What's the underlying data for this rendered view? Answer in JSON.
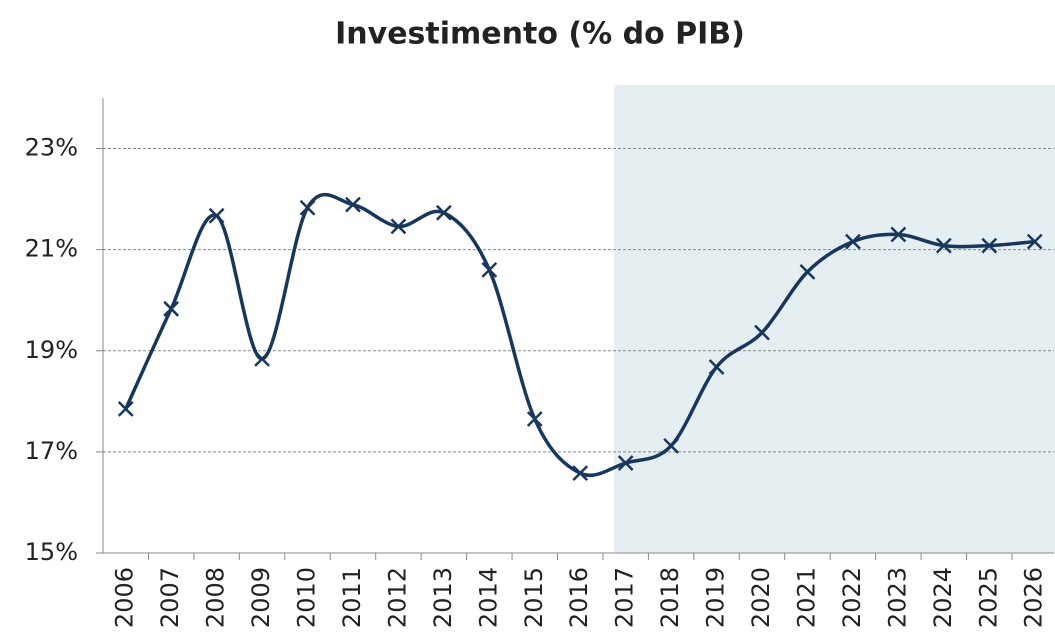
{
  "chart_data": {
    "type": "line",
    "title": "Investimento (% do PIB)",
    "categories": [
      "2006",
      "2007",
      "2008",
      "2009",
      "2010",
      "2011",
      "2012",
      "2013",
      "2014",
      "2015",
      "2016",
      "2017",
      "2018",
      "2019",
      "2020",
      "2021",
      "2022",
      "2023",
      "2024",
      "2025",
      "2026"
    ],
    "series": [
      {
        "color": "#17375e",
        "values": [
          17.85,
          19.83,
          21.67,
          18.84,
          21.83,
          21.89,
          21.46,
          21.73,
          20.6,
          17.65,
          16.58,
          16.78,
          17.12,
          18.68,
          19.36,
          20.56,
          21.16,
          21.3,
          21.08,
          21.08,
          21.16
        ]
      }
    ],
    "ylim": [
      15,
      24
    ],
    "yticks": [
      {
        "value": 15,
        "label": "15%"
      },
      {
        "value": 17,
        "label": "17%"
      },
      {
        "value": 19,
        "label": "19%"
      },
      {
        "value": 21,
        "label": "21%"
      },
      {
        "value": 23,
        "label": "23%"
      }
    ],
    "grid": true
  }
}
